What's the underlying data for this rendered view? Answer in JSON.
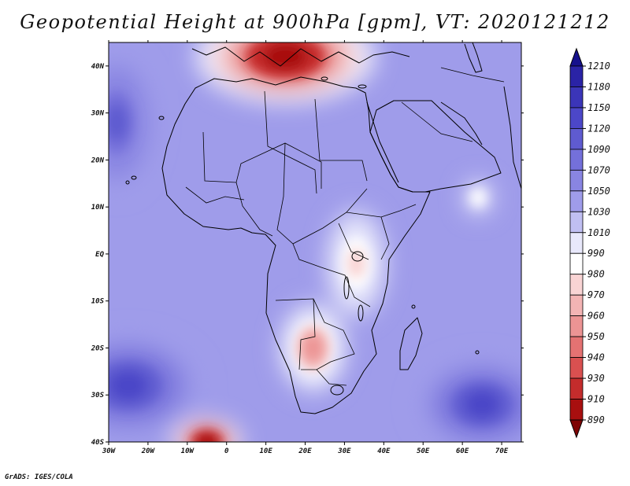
{
  "title": "Geopotential Height at 900hPa [gpm], VT: 2020121212",
  "credit": "GrADS: IGES/COLA",
  "axes": {
    "lon_labels": [
      "30W",
      "20W",
      "10W",
      "0",
      "10E",
      "20E",
      "30E",
      "40E",
      "50E",
      "60E",
      "70E"
    ],
    "lat_labels": [
      "40N",
      "30N",
      "20N",
      "10N",
      "EQ",
      "10S",
      "20S",
      "30S",
      "40S"
    ]
  },
  "chart_data": {
    "type": "heatmap",
    "title": "Geopotential Height at 900hPa [gpm], VT: 2020121212",
    "variable": "Geopotential Height",
    "level": "900hPa",
    "units": "gpm",
    "valid_time": "2020121212",
    "xlim": [
      -30,
      75
    ],
    "ylim": [
      -40,
      45
    ],
    "colorbar": {
      "levels": [
        1210,
        1180,
        1150,
        1120,
        1090,
        1070,
        1050,
        1030,
        1010,
        990,
        980,
        970,
        960,
        950,
        940,
        930,
        910,
        890
      ],
      "colors": [
        "#16118c",
        "#2a23a6",
        "#3b35b8",
        "#4c47c8",
        "#5f5bd0",
        "#7470da",
        "#8985e2",
        "#9f9cea",
        "#c0bff2",
        "#e8e8fb",
        "#ffffff",
        "#f9d4d4",
        "#f3b4b4",
        "#ec9494",
        "#e47272",
        "#d95050",
        "#c42c2c",
        "#a80f0f",
        "#7e0505"
      ]
    },
    "features": [
      {
        "name": "north-africa-mediterranean-low",
        "lon": 15,
        "lat": 42,
        "value": 890
      },
      {
        "name": "atlantic-south-high",
        "lon": -25,
        "lat": -28,
        "value": 1120
      },
      {
        "name": "indian-ocean-south-high",
        "lon": 65,
        "lat": -32,
        "value": 1120
      },
      {
        "name": "southern-africa-low",
        "lon": 22,
        "lat": -20,
        "value": 950
      },
      {
        "name": "east-africa-low",
        "lon": 33,
        "lat": -2,
        "value": 970
      },
      {
        "name": "arabian-sea-low",
        "lon": 64,
        "lat": 12,
        "value": 980
      },
      {
        "name": "atlantic-north-high",
        "lon": -28,
        "lat": 28,
        "value": 1090
      },
      {
        "name": "southwest-atlantic-low",
        "lon": -5,
        "lat": -40,
        "value": 890
      }
    ]
  }
}
